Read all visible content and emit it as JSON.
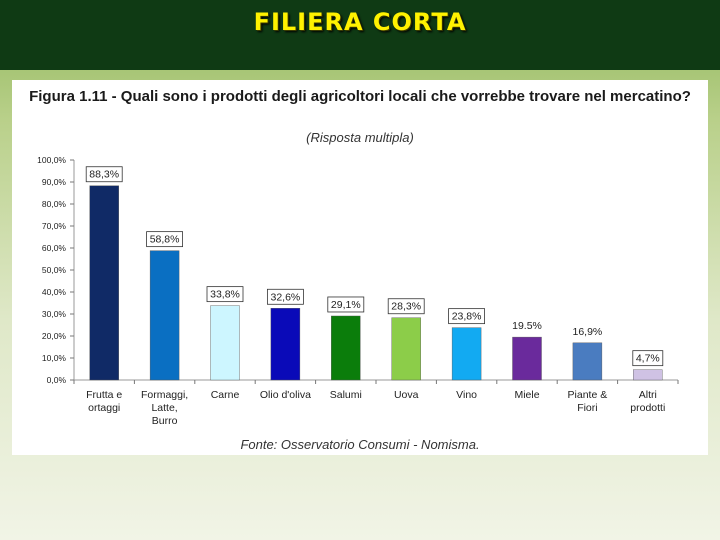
{
  "slide": {
    "title": "FILIERA CORTA",
    "title_color": "#fff200",
    "banner_color": "#0f3a14"
  },
  "chart_data": {
    "type": "bar",
    "title": "Figura 1.11 - Quali sono i prodotti degli agricoltori locali che vorrebbe trovare nel mercatino?",
    "subtitle": "(Risposta multipla)",
    "source": "Fonte: Osservatorio Consumi - Nomisma.",
    "categories": [
      [
        "Frutta e",
        "ortaggi"
      ],
      [
        "Formaggi,",
        "Latte,",
        "Burro"
      ],
      [
        "Carne"
      ],
      [
        "Olio d'oliva"
      ],
      [
        "Salumi"
      ],
      [
        "Uova"
      ],
      [
        "Vino"
      ],
      [
        "Miele"
      ],
      [
        "Piante &",
        "Fiori"
      ],
      [
        "Altri",
        "prodotti"
      ]
    ],
    "values": [
      88.3,
      58.8,
      33.8,
      32.6,
      29.1,
      28.3,
      23.8,
      19.5,
      16.9,
      4.7
    ],
    "labels": [
      "88,3%",
      "58,8%",
      "33,8%",
      "32,6%",
      "29,1%",
      "28,3%",
      "23,8%",
      "19.5%",
      "16,9%",
      "4,7%"
    ],
    "boxed_labels": [
      true,
      true,
      true,
      true,
      true,
      true,
      true,
      false,
      false,
      true
    ],
    "colors": [
      "#102a66",
      "#0a6fc2",
      "#cdf6ff",
      "#0a0ab8",
      "#0b7d0b",
      "#8ccd49",
      "#12aaf2",
      "#6a2a9c",
      "#4a7cc0",
      "#cfc2e4"
    ],
    "ylim": [
      0,
      100
    ],
    "yticks": [
      "0,0%",
      "10,0%",
      "20,0%",
      "30,0%",
      "40,0%",
      "50,0%",
      "60,0%",
      "70,0%",
      "80,0%",
      "90,0%",
      "100,0%"
    ],
    "ytick_values": [
      0,
      10,
      20,
      30,
      40,
      50,
      60,
      70,
      80,
      90,
      100
    ],
    "xlabel": "",
    "ylabel": ""
  }
}
